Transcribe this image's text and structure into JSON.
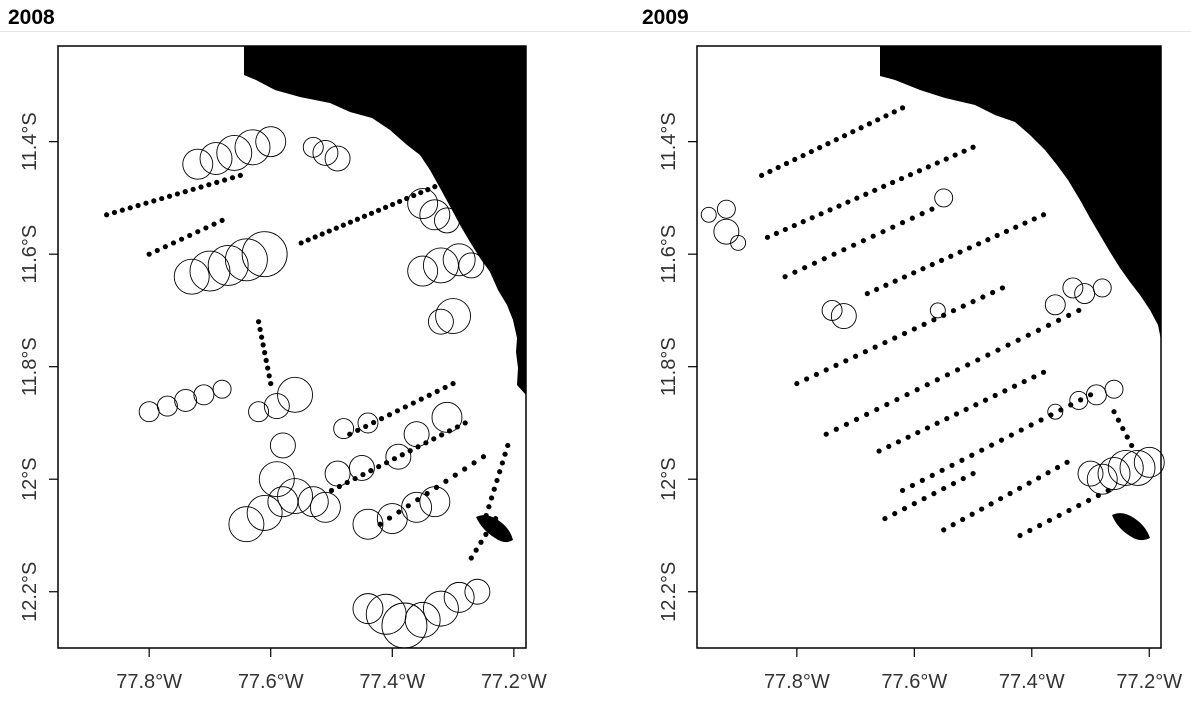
{
  "panels": [
    {
      "title": "2008",
      "x_ticks": [
        "77.8°W",
        "77.6°W",
        "77.4°W",
        "77.2°W"
      ],
      "y_ticks": [
        "11.4°S",
        "11.6°S",
        "11.8°S",
        "12°S",
        "12.2°S"
      ]
    },
    {
      "title": "2009",
      "x_ticks": [
        "77.8°W",
        "77.6°W",
        "77.4°W",
        "77.2°W"
      ],
      "y_ticks": [
        "11.4°S",
        "11.6°S",
        "11.8°S",
        "12°S",
        "12.2°S"
      ]
    }
  ],
  "chart_data": [
    {
      "type": "scatter",
      "title": "2008",
      "xlim": [
        -77.95,
        -77.18
      ],
      "ylim": [
        -12.3,
        -11.23
      ],
      "x_tick_values": [
        -77.8,
        -77.6,
        -77.4,
        -77.2
      ],
      "y_tick_values": [
        -11.4,
        -11.6,
        -11.8,
        -12.0,
        -12.2
      ],
      "transects": [
        {
          "from": [
            -77.87,
            -11.53
          ],
          "to": [
            -77.65,
            -11.46
          ],
          "n": 18
        },
        {
          "from": [
            -77.8,
            -11.6
          ],
          "to": [
            -77.68,
            -11.54
          ],
          "n": 10
        },
        {
          "from": [
            -77.55,
            -11.58
          ],
          "to": [
            -77.33,
            -11.48
          ],
          "n": 20
        },
        {
          "from": [
            -77.62,
            -11.72
          ],
          "to": [
            -77.6,
            -11.83
          ],
          "n": 9
        },
        {
          "from": [
            -77.47,
            -11.92
          ],
          "to": [
            -77.3,
            -11.83
          ],
          "n": 14
        },
        {
          "from": [
            -77.5,
            -12.02
          ],
          "to": [
            -77.28,
            -11.9
          ],
          "n": 18
        },
        {
          "from": [
            -77.42,
            -12.08
          ],
          "to": [
            -77.25,
            -11.96
          ],
          "n": 12
        },
        {
          "from": [
            -77.25,
            -12.08
          ],
          "to": [
            -77.21,
            -11.94
          ],
          "n": 10
        },
        {
          "from": [
            -77.27,
            -12.14
          ],
          "to": [
            -77.23,
            -12.07
          ],
          "n": 6
        }
      ],
      "points": [
        [
          -77.72,
          -11.44,
          3
        ],
        [
          -77.69,
          -11.43,
          3.2
        ],
        [
          -77.66,
          -11.42,
          3.5
        ],
        [
          -77.63,
          -11.41,
          3.5
        ],
        [
          -77.6,
          -11.4,
          3
        ],
        [
          -77.53,
          -11.41,
          2
        ],
        [
          -77.51,
          -11.42,
          2.5
        ],
        [
          -77.49,
          -11.43,
          2.5
        ],
        [
          -77.73,
          -11.64,
          3.5
        ],
        [
          -77.7,
          -11.63,
          4
        ],
        [
          -77.67,
          -11.62,
          4
        ],
        [
          -77.64,
          -11.61,
          4.2
        ],
        [
          -77.61,
          -11.6,
          4.5
        ],
        [
          -77.35,
          -11.51,
          3
        ],
        [
          -77.33,
          -11.53,
          3
        ],
        [
          -77.31,
          -11.54,
          2.5
        ],
        [
          -77.35,
          -11.63,
          3
        ],
        [
          -77.32,
          -11.62,
          3.5
        ],
        [
          -77.29,
          -11.61,
          3.2
        ],
        [
          -77.27,
          -11.62,
          2.5
        ],
        [
          -77.3,
          -11.71,
          3.5
        ],
        [
          -77.32,
          -11.72,
          2.5
        ],
        [
          -77.8,
          -11.88,
          2
        ],
        [
          -77.77,
          -11.87,
          2
        ],
        [
          -77.74,
          -11.86,
          2.2
        ],
        [
          -77.71,
          -11.85,
          2
        ],
        [
          -77.68,
          -11.84,
          1.8
        ],
        [
          -77.62,
          -11.88,
          2
        ],
        [
          -77.59,
          -11.87,
          2.5
        ],
        [
          -77.56,
          -11.85,
          3.5
        ],
        [
          -77.58,
          -11.94,
          2.5
        ],
        [
          -77.48,
          -11.91,
          2
        ],
        [
          -77.44,
          -11.9,
          2
        ],
        [
          -77.36,
          -11.92,
          2.5
        ],
        [
          -77.31,
          -11.89,
          3
        ],
        [
          -77.59,
          -12.0,
          3.5
        ],
        [
          -77.56,
          -12.03,
          3.5
        ],
        [
          -77.53,
          -12.04,
          3
        ],
        [
          -77.51,
          -12.05,
          3
        ],
        [
          -77.64,
          -12.08,
          3.5
        ],
        [
          -77.61,
          -12.06,
          3.5
        ],
        [
          -77.58,
          -12.04,
          3
        ],
        [
          -77.49,
          -11.99,
          2.5
        ],
        [
          -77.45,
          -11.98,
          2.5
        ],
        [
          -77.39,
          -11.96,
          2.5
        ],
        [
          -77.44,
          -12.08,
          3
        ],
        [
          -77.4,
          -12.07,
          3
        ],
        [
          -77.36,
          -12.05,
          3
        ],
        [
          -77.33,
          -12.04,
          3
        ],
        [
          -77.44,
          -12.23,
          3
        ],
        [
          -77.41,
          -12.24,
          4
        ],
        [
          -77.38,
          -12.26,
          4.5
        ],
        [
          -77.35,
          -12.25,
          3.5
        ],
        [
          -77.32,
          -12.23,
          3.5
        ],
        [
          -77.29,
          -12.21,
          3
        ],
        [
          -77.26,
          -12.2,
          2.5
        ]
      ]
    },
    {
      "type": "scatter",
      "title": "2009",
      "xlim": [
        -77.97,
        -77.18
      ],
      "ylim": [
        -12.3,
        -11.23
      ],
      "x_tick_values": [
        -77.8,
        -77.6,
        -77.4,
        -77.2
      ],
      "y_tick_values": [
        -11.4,
        -11.6,
        -11.8,
        -12.0,
        -12.2
      ],
      "transects": [
        {
          "from": [
            -77.86,
            -11.46
          ],
          "to": [
            -77.62,
            -11.34
          ],
          "n": 18
        },
        {
          "from": [
            -77.85,
            -11.57
          ],
          "to": [
            -77.5,
            -11.41
          ],
          "n": 24
        },
        {
          "from": [
            -77.82,
            -11.64
          ],
          "to": [
            -77.57,
            -11.52
          ],
          "n": 16
        },
        {
          "from": [
            -77.68,
            -11.67
          ],
          "to": [
            -77.38,
            -11.53
          ],
          "n": 20
        },
        {
          "from": [
            -77.8,
            -11.83
          ],
          "to": [
            -77.45,
            -11.66
          ],
          "n": 22
        },
        {
          "from": [
            -77.75,
            -11.92
          ],
          "to": [
            -77.32,
            -11.7
          ],
          "n": 26
        },
        {
          "from": [
            -77.66,
            -11.95
          ],
          "to": [
            -77.38,
            -11.81
          ],
          "n": 18
        },
        {
          "from": [
            -77.62,
            -12.02
          ],
          "to": [
            -77.3,
            -11.85
          ],
          "n": 20
        },
        {
          "from": [
            -77.65,
            -12.07
          ],
          "to": [
            -77.5,
            -11.99
          ],
          "n": 10
        },
        {
          "from": [
            -77.55,
            -12.09
          ],
          "to": [
            -77.34,
            -11.97
          ],
          "n": 14
        },
        {
          "from": [
            -77.42,
            -12.1
          ],
          "to": [
            -77.27,
            -12.02
          ],
          "n": 10
        },
        {
          "from": [
            -77.26,
            -11.88
          ],
          "to": [
            -77.23,
            -11.94
          ],
          "n": 5
        }
      ],
      "points": [
        [
          -77.95,
          -11.53,
          1.5
        ],
        [
          -77.92,
          -11.52,
          1.8
        ],
        [
          -77.92,
          -11.56,
          2.5
        ],
        [
          -77.9,
          -11.58,
          1.5
        ],
        [
          -77.72,
          -11.71,
          2.5
        ],
        [
          -77.74,
          -11.7,
          2
        ],
        [
          -77.55,
          -11.5,
          1.8
        ],
        [
          -77.56,
          -11.7,
          1.5
        ],
        [
          -77.33,
          -11.66,
          2
        ],
        [
          -77.31,
          -11.67,
          2
        ],
        [
          -77.36,
          -11.69,
          2
        ],
        [
          -77.28,
          -11.66,
          1.8
        ],
        [
          -77.36,
          -11.88,
          1.5
        ],
        [
          -77.32,
          -11.86,
          1.8
        ],
        [
          -77.29,
          -11.85,
          2
        ],
        [
          -77.26,
          -11.84,
          1.8
        ],
        [
          -77.3,
          -11.99,
          2.5
        ],
        [
          -77.28,
          -12.0,
          3
        ],
        [
          -77.26,
          -11.99,
          3.2
        ],
        [
          -77.24,
          -11.98,
          3.5
        ],
        [
          -77.22,
          -11.98,
          3.5
        ],
        [
          -77.2,
          -11.97,
          3
        ]
      ]
    }
  ]
}
